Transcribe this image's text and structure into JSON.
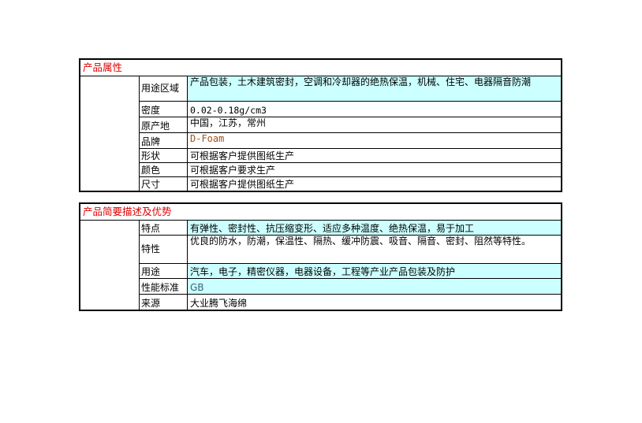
{
  "section1": {
    "title": "产品属性",
    "rows": [
      {
        "label": "用途区域",
        "value": "产品包装，土木建筑密封，空调和冷却器的绝热保温，机械、住宅、电器隔音防潮"
      },
      {
        "label": "密度",
        "value": "0.02-0.18g/cm3"
      },
      {
        "label": "原产地",
        "value": "中国，江苏，常州"
      },
      {
        "label": "品牌",
        "value": "D-Foam"
      },
      {
        "label": "形状",
        "value": "可根据客户提供图纸生产"
      },
      {
        "label": "颜色",
        "value": "可根据客户要求生产"
      },
      {
        "label": "尺寸",
        "value": "可根据客户提供图纸生产"
      }
    ]
  },
  "section2": {
    "title": "产品简要描述及优势",
    "rows": [
      {
        "label": "特点",
        "value": "有弹性、密封性、抗压缩变形、适应多种温度、绝热保温，易于加工"
      },
      {
        "label": "特性",
        "value": "优良的防水，防潮，保温性、隔热、缓冲防震、吸音、隔音、密封、阻然等特性。"
      },
      {
        "label": "用途",
        "value": "汽车，电子，精密仪器，电器设备，工程等产业产品包装及防护"
      },
      {
        "label": "性能标准",
        "value": "GB"
      },
      {
        "label": "来源",
        "value": "大业腾飞海绵"
      }
    ]
  },
  "colors": {
    "highlight": "#ccffff",
    "section_title": "#e00000"
  }
}
